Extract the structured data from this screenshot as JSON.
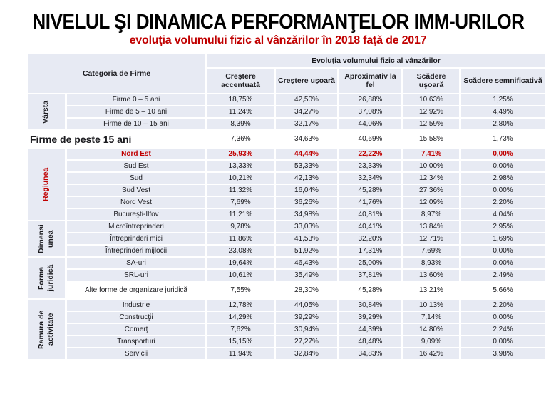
{
  "title": "NIVELUL ŞI DINAMICA PERFORMANŢELOR IMM-URILOR",
  "subtitle": "evoluţia volumului fizic al vânzărilor în 2018 faţă de 2017",
  "colors": {
    "accent_red": "#C00000",
    "cell_bg": "#E7EAF3",
    "highlight_row_bg": "#FFFFFF"
  },
  "table": {
    "corner_header": "Categoria de Firme",
    "span_header": "Evoluţia volumului fizic al vânzărilor",
    "columns": [
      "Creştere accentuată",
      "Creştere uşoară",
      "Aproximativ la fel",
      "Scădere uşoară",
      "Scădere semnificativă"
    ],
    "sections": [
      {
        "group": "Vârsta",
        "rows": [
          {
            "label": "Firme 0 – 5 ani",
            "values": [
              "18,75%",
              "42,50%",
              "26,88%",
              "10,63%",
              "1,25%"
            ]
          },
          {
            "label": "Firme de 5 – 10 ani",
            "values": [
              "11,24%",
              "34,27%",
              "37,08%",
              "12,92%",
              "4,49%"
            ]
          },
          {
            "label": "Firme de 10 – 15 ani",
            "values": [
              "8,39%",
              "32,17%",
              "44,06%",
              "12,59%",
              "2,80%"
            ]
          }
        ]
      },
      {
        "group": null,
        "rows": [
          {
            "label": "Firme de peste 15 ani",
            "variant": "wide",
            "values": [
              "7,36%",
              "34,63%",
              "40,69%",
              "15,58%",
              "1,73%"
            ]
          }
        ]
      },
      {
        "group": "Regiunea",
        "rows": [
          {
            "label": "Nord Est",
            "variant": "red",
            "values": [
              "25,93%",
              "44,44%",
              "22,22%",
              "7,41%",
              "0,00%"
            ]
          },
          {
            "label": "Sud Est",
            "values": [
              "13,33%",
              "53,33%",
              "23,33%",
              "10,00%",
              "0,00%"
            ]
          },
          {
            "label": "Sud",
            "values": [
              "10,21%",
              "42,13%",
              "32,34%",
              "12,34%",
              "2,98%"
            ]
          },
          {
            "label": "Sud Vest",
            "values": [
              "11,32%",
              "16,04%",
              "45,28%",
              "27,36%",
              "0,00%"
            ]
          },
          {
            "label": "Nord Vest",
            "values": [
              "7,69%",
              "36,26%",
              "41,76%",
              "12,09%",
              "2,20%"
            ]
          },
          {
            "label": "Bucureşti-Ilfov",
            "values": [
              "11,21%",
              "34,98%",
              "40,81%",
              "8,97%",
              "4,04%"
            ]
          }
        ]
      },
      {
        "group": "Dimensiunea",
        "rows": [
          {
            "label": "Microîntreprinderi",
            "values": [
              "9,78%",
              "33,03%",
              "40,41%",
              "13,84%",
              "2,95%"
            ]
          },
          {
            "label": "Întreprinderi mici",
            "values": [
              "11,86%",
              "41,53%",
              "32,20%",
              "12,71%",
              "1,69%"
            ]
          },
          {
            "label": "Întreprinderi mijlocii",
            "values": [
              "23,08%",
              "51,92%",
              "17,31%",
              "7,69%",
              "0,00%"
            ]
          }
        ]
      },
      {
        "group": "Forma juridică",
        "rows": [
          {
            "label": "SA-uri",
            "values": [
              "19,64%",
              "46,43%",
              "25,00%",
              "8,93%",
              "0,00%"
            ]
          },
          {
            "label": "SRL-uri",
            "values": [
              "10,61%",
              "35,49%",
              "37,81%",
              "13,60%",
              "2,49%"
            ]
          },
          {
            "label": "Alte forme de organizare juridică",
            "variant": "tall",
            "values": [
              "7,55%",
              "28,30%",
              "45,28%",
              "13,21%",
              "5,66%"
            ]
          }
        ]
      },
      {
        "group": "Ramura de activitate",
        "rows": [
          {
            "label": "Industrie",
            "values": [
              "12,78%",
              "44,05%",
              "30,84%",
              "10,13%",
              "2,20%"
            ]
          },
          {
            "label": "Construcţii",
            "values": [
              "14,29%",
              "39,29%",
              "39,29%",
              "7,14%",
              "0,00%"
            ]
          },
          {
            "label": "Comerţ",
            "values": [
              "7,62%",
              "30,94%",
              "44,39%",
              "14,80%",
              "2,24%"
            ]
          },
          {
            "label": "Transporturi",
            "values": [
              "15,15%",
              "27,27%",
              "48,48%",
              "9,09%",
              "0,00%"
            ]
          },
          {
            "label": "Servicii",
            "values": [
              "11,94%",
              "32,84%",
              "34,83%",
              "16,42%",
              "3,98%"
            ]
          }
        ]
      }
    ]
  }
}
